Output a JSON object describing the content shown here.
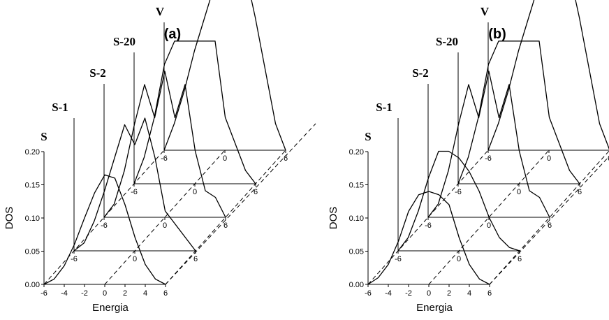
{
  "chart_data": [
    {
      "type": "line",
      "panel_label": "(a)",
      "xlabel": "Energia",
      "ylabel": "DOS",
      "x_ticks": [
        "-6",
        "-4",
        "-2",
        "0",
        "2",
        "4",
        "6"
      ],
      "y_ticks": [
        "0.00",
        "0.05",
        "0.10",
        "0.15",
        "0.20"
      ],
      "xlim": [
        -6,
        6
      ],
      "ylim": [
        0,
        0.2
      ],
      "layers": [
        {
          "name": "S",
          "offset_ticks": [
            "-6",
            "0",
            "6"
          ],
          "x": [
            -6,
            -5,
            -4,
            -3,
            -2,
            -1,
            0,
            1,
            2,
            3,
            4,
            5,
            6
          ],
          "y": [
            0,
            0.008,
            0.028,
            0.06,
            0.1,
            0.138,
            0.165,
            0.16,
            0.12,
            0.07,
            0.03,
            0.008,
            0
          ]
        },
        {
          "name": "S-1",
          "offset_ticks": [
            "-6",
            "0",
            "6"
          ],
          "x": [
            -6,
            -5,
            -4,
            -3,
            -2,
            -1,
            0,
            1,
            2,
            3,
            4,
            5,
            6
          ],
          "y": [
            0,
            0.012,
            0.045,
            0.09,
            0.14,
            0.19,
            0.16,
            0.2,
            0.14,
            0.06,
            0.04,
            0.02,
            0
          ]
        },
        {
          "name": "S-2",
          "offset_ticks": [
            "-6",
            "0",
            "6"
          ],
          "x": [
            -6,
            -5,
            -4,
            -3,
            -2,
            -1,
            0,
            1,
            2,
            3,
            4,
            5,
            6
          ],
          "y": [
            0,
            0.02,
            0.07,
            0.14,
            0.2,
            0.15,
            0.22,
            0.15,
            0.2,
            0.1,
            0.04,
            0.03,
            0
          ]
        },
        {
          "name": "S-20",
          "offset_ticks": [
            "-6",
            "0",
            "6"
          ],
          "x": [
            -6,
            -5,
            -4,
            -3,
            -2,
            -1,
            0,
            1,
            2,
            3,
            4,
            5,
            6
          ],
          "y": [
            0,
            0.04,
            0.1,
            0.18,
            0.215,
            0.215,
            0.215,
            0.215,
            0.215,
            0.1,
            0.06,
            0.02,
            0
          ]
        },
        {
          "name": "V",
          "offset_ticks": [
            "-6",
            "0",
            "6"
          ],
          "x": [
            -6,
            -5,
            -4,
            -3,
            -2,
            -1,
            0,
            1,
            2,
            3,
            4,
            5,
            6
          ],
          "y": [
            0,
            0.04,
            0.09,
            0.15,
            0.2,
            0.25,
            0.275,
            0.275,
            0.27,
            0.2,
            0.12,
            0.04,
            0
          ]
        }
      ]
    },
    {
      "type": "line",
      "panel_label": "(b)",
      "xlabel": "Energia",
      "ylabel": "DOS",
      "x_ticks": [
        "-6",
        "-4",
        "-2",
        "0",
        "2",
        "4",
        "6"
      ],
      "y_ticks": [
        "0.00",
        "0.05",
        "0.10",
        "0.15",
        "0.20"
      ],
      "xlim": [
        -6,
        6
      ],
      "ylim": [
        0,
        0.2
      ],
      "layers": [
        {
          "name": "S",
          "offset_ticks": [
            "-6",
            "0",
            "6"
          ],
          "x": [
            -6,
            -5,
            -4,
            -3,
            -2,
            -1,
            0,
            1,
            2,
            3,
            4,
            5,
            6
          ],
          "y": [
            0,
            0.01,
            0.03,
            0.065,
            0.11,
            0.135,
            0.14,
            0.135,
            0.12,
            0.07,
            0.03,
            0.008,
            0
          ]
        },
        {
          "name": "S-1",
          "offset_ticks": [
            "-6",
            "0",
            "6"
          ],
          "x": [
            -6,
            -5,
            -4,
            -3,
            -2,
            -1,
            0,
            1,
            2,
            3,
            4,
            5,
            6
          ],
          "y": [
            0,
            0.02,
            0.06,
            0.11,
            0.15,
            0.15,
            0.14,
            0.12,
            0.09,
            0.05,
            0.02,
            0.005,
            0
          ]
        },
        {
          "name": "S-2",
          "offset_ticks": [
            "-6",
            "0",
            "6"
          ],
          "x": [
            -6,
            -5,
            -4,
            -3,
            -2,
            -1,
            0,
            1,
            2,
            3,
            4,
            5,
            6
          ],
          "y": [
            0,
            0.02,
            0.07,
            0.14,
            0.2,
            0.15,
            0.22,
            0.15,
            0.2,
            0.1,
            0.04,
            0.03,
            0
          ]
        },
        {
          "name": "S-20",
          "offset_ticks": [
            "-6",
            "0",
            "6"
          ],
          "x": [
            -6,
            -5,
            -4,
            -3,
            -2,
            -1,
            0,
            1,
            2,
            3,
            4,
            5,
            6
          ],
          "y": [
            0,
            0.04,
            0.1,
            0.18,
            0.215,
            0.215,
            0.215,
            0.215,
            0.215,
            0.1,
            0.06,
            0.02,
            0
          ]
        },
        {
          "name": "V",
          "offset_ticks": [
            "-6",
            "0",
            "6"
          ],
          "x": [
            -6,
            -5,
            -4,
            -3,
            -2,
            -1,
            0,
            1,
            2,
            3,
            4,
            5,
            6
          ],
          "y": [
            0,
            0.04,
            0.09,
            0.15,
            0.2,
            0.25,
            0.275,
            0.275,
            0.27,
            0.2,
            0.12,
            0.04,
            0
          ]
        }
      ]
    }
  ]
}
